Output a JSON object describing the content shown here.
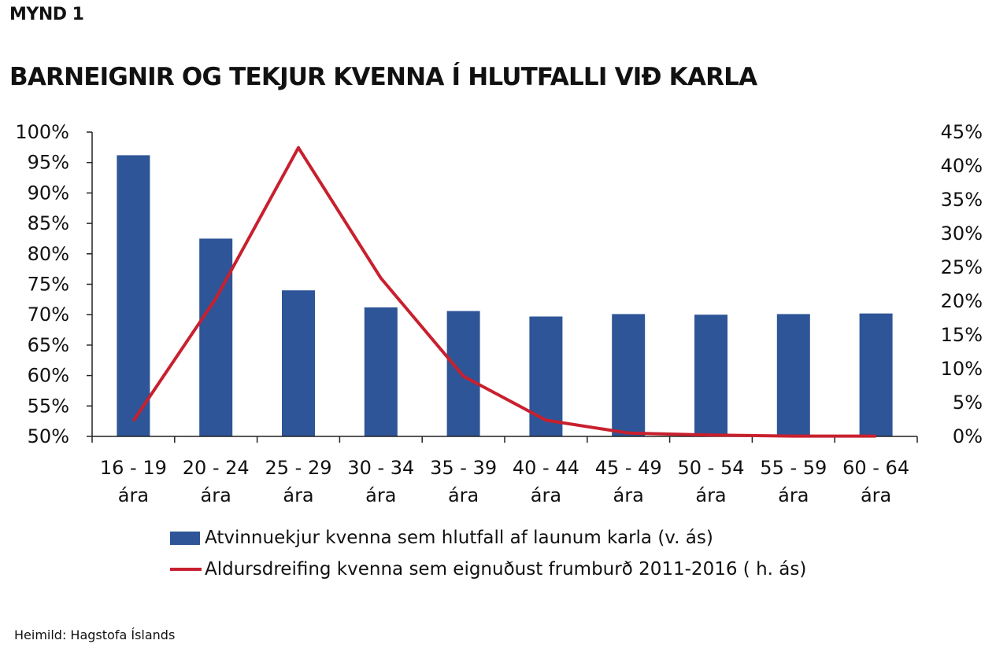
{
  "header": {
    "figure_label": "MYND 1",
    "title": "BARNEIGNIR OG TEKJUR KVENNA Í HLUTFALLI VIÐ KARLA"
  },
  "chart_data": {
    "type": "bar",
    "categories": [
      [
        "16 - 19",
        "ára"
      ],
      [
        "20 - 24",
        "ára"
      ],
      [
        "25 - 29",
        "ára"
      ],
      [
        "30 - 34",
        "ára"
      ],
      [
        "35 - 39",
        "ára"
      ],
      [
        "40 - 44",
        "ára"
      ],
      [
        "45 - 49",
        "ára"
      ],
      [
        "50 - 54",
        "ára"
      ],
      [
        "55 - 59",
        "ára"
      ],
      [
        "60 - 64",
        "ára"
      ]
    ],
    "series": [
      {
        "name": "Atvinnuekjur kvenna sem hlutfall af launum karla (v. ás)",
        "type": "bar",
        "axis": "left",
        "color": "#2e5597",
        "values": [
          96.2,
          82.5,
          74.0,
          71.2,
          70.6,
          69.7,
          70.1,
          70.0,
          70.1,
          70.2
        ]
      },
      {
        "name": "Aldursdreifing kvenna sem eignuðust frumburð 2011-2016 ( h. ás)",
        "type": "line",
        "axis": "right",
        "color": "#c8202e",
        "values": [
          2.3,
          20.4,
          42.7,
          23.4,
          8.9,
          2.4,
          0.5,
          0.2,
          0.05,
          0.05
        ]
      }
    ],
    "y_left": {
      "range": [
        50,
        100
      ],
      "ticks": [
        "50%",
        "55%",
        "60%",
        "65%",
        "70%",
        "75%",
        "80%",
        "85%",
        "90%",
        "95%",
        "100%"
      ]
    },
    "y_right": {
      "range": [
        0,
        45
      ],
      "ticks": [
        "0%",
        "5%",
        "10%",
        "15%",
        "20%",
        "25%",
        "30%",
        "35%",
        "40%",
        "45%"
      ]
    },
    "grid": false,
    "legend_position": "bottom"
  },
  "source": "Heimild: Hagstofa Íslands"
}
